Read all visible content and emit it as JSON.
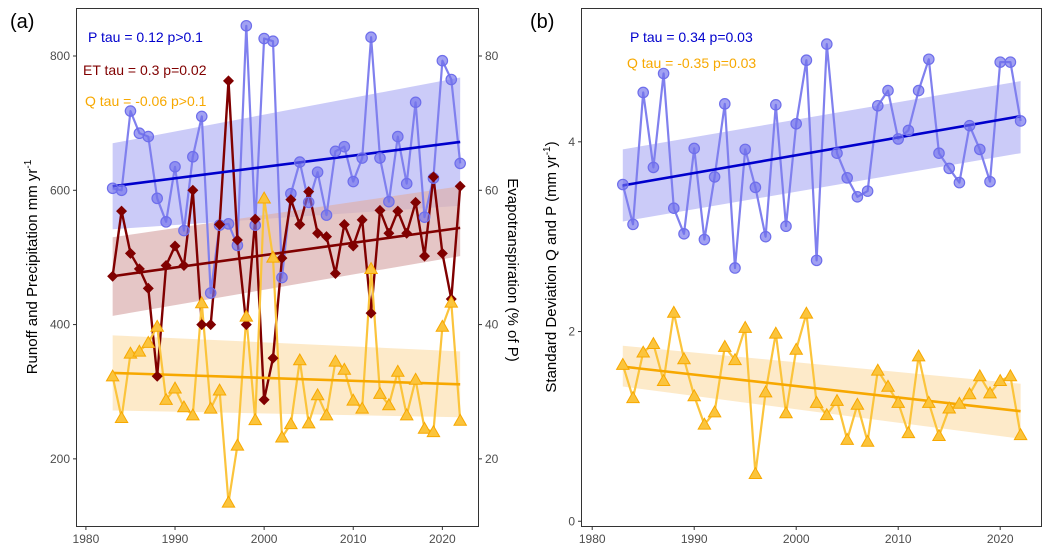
{
  "colors": {
    "precip": "#0000cc",
    "precip_light": "#8080ee",
    "precip_ribbon": "#c2c2f7",
    "et": "#800000",
    "et_ribbon": "#dcb3b3",
    "runoff": "#f7a800",
    "runoff_light": "#fbc43c",
    "runoff_ribbon": "#fde6bf"
  },
  "chart_data": [
    {
      "type": "line",
      "panel_label": "(a)",
      "xlim": [
        1979,
        2024
      ],
      "ylim": [
        100,
        870
      ],
      "y2lim": [
        10,
        87
      ],
      "xticks": [
        1980,
        1990,
        2000,
        2010,
        2020
      ],
      "yticks": [
        200,
        400,
        600,
        800
      ],
      "y2ticks": [
        20,
        40,
        60,
        80
      ],
      "xlabel": "",
      "ylabel": "Runoff and Precipitation mm yr",
      "ylabel_superscript": "-1",
      "y2label": "Evapotranspiration (% of P)",
      "annotations": [
        {
          "text": "P tau = 0.12 p>0.1",
          "series": "P"
        },
        {
          "text": "ET tau = 0.3 p=0.02",
          "series": "ET"
        },
        {
          "text": "Q tau = -0.06 p>0.1",
          "series": "Q"
        }
      ],
      "series": [
        {
          "name": "P",
          "axis": "left",
          "marker": "circle",
          "x": [
            1983,
            1984,
            1985,
            1986,
            1987,
            1988,
            1989,
            1990,
            1991,
            1992,
            1993,
            1994,
            1995,
            1996,
            1997,
            1998,
            1999,
            2000,
            2001,
            2002,
            2003,
            2004,
            2005,
            2006,
            2007,
            2008,
            2009,
            2010,
            2011,
            2012,
            2013,
            2014,
            2015,
            2016,
            2017,
            2018,
            2019,
            2020,
            2021,
            2022
          ],
          "values": [
            603,
            600,
            718,
            685,
            680,
            588,
            553,
            635,
            540,
            650,
            710,
            447,
            548,
            550,
            518,
            845,
            548,
            826,
            822,
            470,
            595,
            642,
            582,
            627,
            563,
            658,
            665,
            613,
            648,
            828,
            648,
            583,
            680,
            610,
            731,
            560,
            618,
            793,
            765,
            640
          ],
          "trend": [
            606,
            672
          ],
          "band": {
            "lower": [
              542,
              577
            ],
            "upper": [
              670,
              768
            ]
          }
        },
        {
          "name": "ET",
          "axis": "right",
          "marker": "diamond",
          "x": [
            1983,
            1984,
            1985,
            1986,
            1987,
            1988,
            1989,
            1990,
            1991,
            1992,
            1993,
            1994,
            1995,
            1996,
            1997,
            1998,
            1999,
            2000,
            2001,
            2002,
            2003,
            2004,
            2005,
            2006,
            2007,
            2008,
            2009,
            2010,
            2011,
            2012,
            2013,
            2014,
            2015,
            2016,
            2017,
            2018,
            2019,
            2020,
            2021,
            2022
          ],
          "values": [
            47.2,
            56.9,
            50.6,
            48.3,
            45.4,
            32.3,
            48.8,
            51.7,
            48.8,
            60.0,
            40.0,
            40.0,
            54.9,
            76.3,
            52.6,
            40.0,
            55.7,
            28.8,
            35.0,
            49.9,
            58.6,
            54.9,
            59.8,
            53.6,
            53.1,
            47.6,
            54.9,
            51.7,
            55.6,
            41.7,
            57.0,
            53.6,
            56.9,
            53.6,
            58.2,
            50.2,
            62.0,
            50.6,
            43.8,
            60.6
          ],
          "trend": [
            47.2,
            54.4
          ],
          "band": {
            "lower": [
              41.3,
              50.2
            ],
            "upper": [
              53.0,
              60.6
            ]
          }
        },
        {
          "name": "Q",
          "axis": "left",
          "marker": "triangle",
          "x": [
            1983,
            1984,
            1985,
            1986,
            1987,
            1988,
            1989,
            1990,
            1991,
            1992,
            1993,
            1994,
            1995,
            1996,
            1997,
            1998,
            1999,
            2000,
            2001,
            2002,
            2003,
            2004,
            2005,
            2006,
            2007,
            2008,
            2009,
            2010,
            2011,
            2012,
            2013,
            2014,
            2015,
            2016,
            2017,
            2018,
            2019,
            2020,
            2021,
            2022
          ],
          "values": [
            323,
            261,
            357,
            360,
            373,
            397,
            288,
            305,
            277,
            265,
            432,
            275,
            302,
            135,
            220,
            412,
            258,
            588,
            500,
            232,
            252,
            347,
            253,
            295,
            265,
            345,
            333,
            287,
            275,
            483,
            297,
            280,
            330,
            265,
            318,
            245,
            240,
            397,
            433,
            257
          ],
          "trend": [
            328,
            311
          ],
          "band": {
            "lower": [
              272,
              262
            ],
            "upper": [
              384,
              360
            ]
          }
        }
      ]
    },
    {
      "type": "line",
      "panel_label": "(b)",
      "xlim": [
        1979,
        2024
      ],
      "ylim": [
        -0.05,
        5.4
      ],
      "xticks": [
        1980,
        1990,
        2000,
        2010,
        2020
      ],
      "yticks": [
        0,
        2,
        4
      ],
      "xlabel": "",
      "ylabel": "Standard Deviation Q and P (mm yr",
      "ylabel_superscript": "-1",
      "ylabel_suffix": ")",
      "annotations": [
        {
          "text": "P tau = 0.34 p=0.03",
          "series": "P"
        },
        {
          "text": "Q tau = -0.35 p=0.03",
          "series": "Q"
        }
      ],
      "series": [
        {
          "name": "P",
          "marker": "circle",
          "x": [
            1983,
            1984,
            1985,
            1986,
            1987,
            1988,
            1989,
            1990,
            1991,
            1992,
            1993,
            1994,
            1995,
            1996,
            1997,
            1998,
            1999,
            2000,
            2001,
            2002,
            2003,
            2004,
            2005,
            2006,
            2007,
            2008,
            2009,
            2010,
            2011,
            2012,
            2013,
            2014,
            2015,
            2016,
            2017,
            2018,
            2019,
            2020,
            2021,
            2022
          ],
          "values": [
            3.55,
            3.13,
            4.52,
            3.73,
            4.72,
            3.3,
            3.03,
            3.93,
            2.97,
            3.63,
            4.4,
            2.67,
            3.92,
            3.52,
            3.0,
            4.39,
            3.11,
            4.19,
            4.86,
            2.75,
            5.03,
            3.88,
            3.62,
            3.42,
            3.48,
            4.38,
            4.54,
            4.03,
            4.12,
            4.54,
            4.87,
            3.88,
            3.72,
            3.57,
            4.17,
            3.92,
            3.58,
            4.84,
            4.84,
            4.22
          ],
          "trend": [
            3.54,
            4.27
          ],
          "band": {
            "lower": [
              3.16,
              3.88
            ],
            "upper": [
              3.92,
              4.64
            ]
          }
        },
        {
          "name": "Q",
          "marker": "triangle",
          "x": [
            1983,
            1984,
            1985,
            1986,
            1987,
            1988,
            1989,
            1990,
            1991,
            1992,
            1993,
            1994,
            1995,
            1996,
            1997,
            1998,
            1999,
            2000,
            2001,
            2002,
            2003,
            2004,
            2005,
            2006,
            2007,
            2008,
            2009,
            2010,
            2011,
            2012,
            2013,
            2014,
            2015,
            2016,
            2017,
            2018,
            2019,
            2020,
            2021,
            2022
          ],
          "values": [
            1.65,
            1.3,
            1.78,
            1.87,
            1.48,
            2.2,
            1.71,
            1.32,
            1.02,
            1.15,
            1.84,
            1.7,
            2.04,
            0.5,
            1.36,
            1.98,
            1.14,
            1.81,
            2.19,
            1.25,
            1.12,
            1.27,
            0.86,
            1.23,
            0.84,
            1.59,
            1.42,
            1.25,
            0.93,
            1.74,
            1.25,
            0.9,
            1.19,
            1.24,
            1.34,
            1.53,
            1.35,
            1.48,
            1.53,
            0.91
          ],
          "trend": [
            1.63,
            1.16
          ],
          "band": {
            "lower": [
              1.42,
              0.87
            ],
            "upper": [
              1.85,
              1.45
            ]
          }
        }
      ]
    }
  ]
}
